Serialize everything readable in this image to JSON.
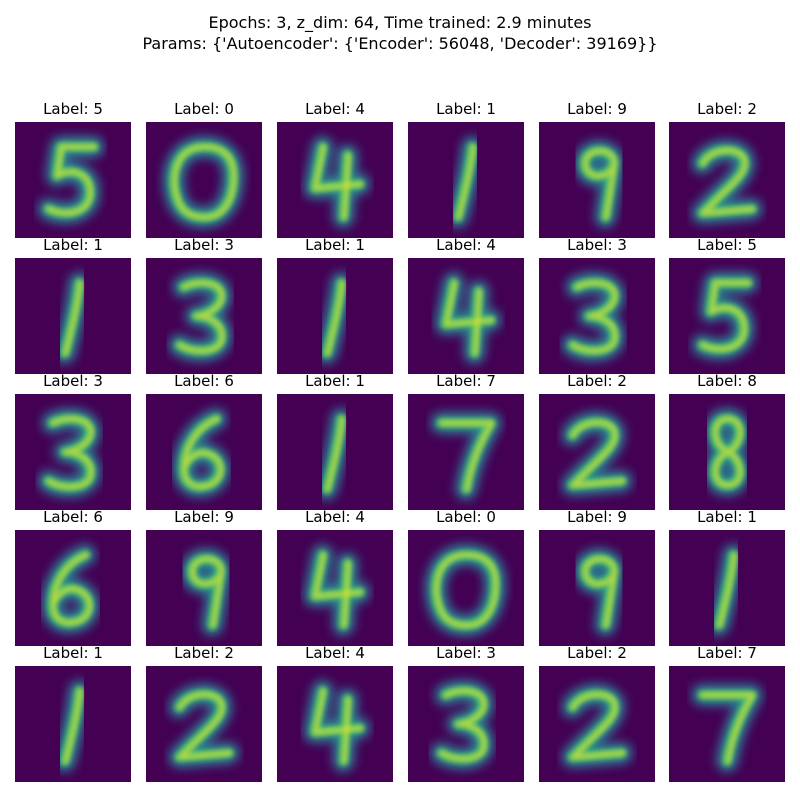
{
  "figure": {
    "suptitle_line1": "Epochs: 3, z_dim: 64, Time trained: 2.9 minutes",
    "suptitle_line2": "Params: {'Autoencoder': {'Encoder': 56048, 'Decoder': 39169}}",
    "colormap": {
      "name": "viridis",
      "background": "#440154",
      "stops": [
        "#440154",
        "#3b528b",
        "#21918c",
        "#5ec962",
        "#fde725"
      ]
    }
  },
  "chart_data": {
    "type": "image-grid",
    "rows": 5,
    "cols": 6,
    "label_prefix": "Label: ",
    "labels": [
      [
        "5",
        "0",
        "4",
        "1",
        "9",
        "2"
      ],
      [
        "1",
        "3",
        "1",
        "4",
        "3",
        "5"
      ],
      [
        "3",
        "6",
        "1",
        "7",
        "2",
        "8"
      ],
      [
        "6",
        "9",
        "4",
        "0",
        "9",
        "1"
      ],
      [
        "1",
        "2",
        "4",
        "3",
        "2",
        "7"
      ]
    ]
  }
}
